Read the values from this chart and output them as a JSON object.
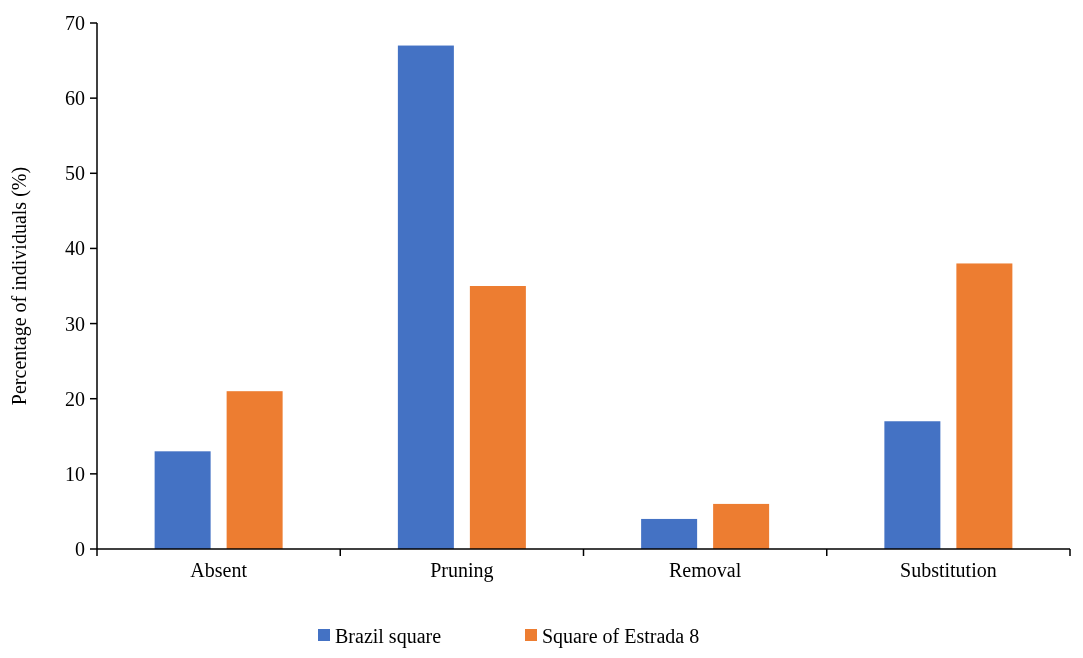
{
  "chart_data": {
    "type": "bar",
    "ylabel": "Percentage of individuals (%)",
    "categories": [
      "Absent",
      "Pruning",
      "Removal",
      "Substitution"
    ],
    "series": [
      {
        "name": "Brazil square",
        "color": "#4472c4",
        "values": [
          13,
          67,
          4,
          17
        ]
      },
      {
        "name": "Square of Estrada 8",
        "color": "#ed7d31",
        "values": [
          21,
          35,
          6,
          38
        ]
      }
    ],
    "ylim": [
      0,
      70
    ],
    "yticks": [
      0,
      10,
      20,
      30,
      40,
      50,
      60,
      70
    ],
    "grid": false,
    "legend": "bottom"
  }
}
